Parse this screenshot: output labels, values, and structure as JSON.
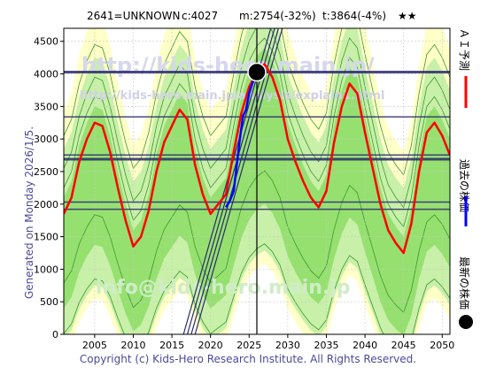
{
  "header": {
    "title": "2641=UNKNOWN",
    "current": "c:4027",
    "min": "m:2754(-32%)",
    "target": "t:3864(-4%)",
    "stars": "★★"
  },
  "side_text": "Generated on Monday 2026/1/5.",
  "footer": "Copyright (c) Kids-Hero Research Institute. All Rights Reserved.",
  "watermarks": {
    "url_main": "http://kids-hero.main.jp/",
    "url_sub": "http://kids-hero.main.jp/analysis/explain1.html",
    "email": "info@kids-hero.main.jp"
  },
  "legend": {
    "ai_forecast": "ＡＩ予測",
    "past_price": "過去の株価",
    "latest_price": "最新の株価"
  },
  "colors": {
    "plot_bg": "#ffffff",
    "pale_yellow": "#ffffc8",
    "light_green": "#c8f0a8",
    "green": "#96e070",
    "dark_green_line": "#3a9a2a",
    "forecast_red": "#ff0000",
    "past_blue": "#0000ff",
    "h_line": "#2a2a6e",
    "diag_line": "#2a2a6e"
  },
  "chart_data": {
    "type": "line",
    "xlim": [
      2001,
      2051
    ],
    "ylim": [
      0,
      4700
    ],
    "x_ticks": [
      2005,
      2010,
      2015,
      2020,
      2025,
      2030,
      2035,
      2040,
      2045,
      2050
    ],
    "y_ticks": [
      0,
      500,
      1000,
      1500,
      2000,
      2500,
      3000,
      3500,
      4000,
      4500
    ],
    "grid": true,
    "legend_position": "right",
    "latest_point": {
      "x": 2026.0,
      "y": 4027
    },
    "vertical_line_x": 2026.0,
    "horizontal_levels": [
      {
        "y": 4027,
        "bold": true
      },
      {
        "y": 3340,
        "bold": false
      },
      {
        "y": 2754,
        "bold": false
      },
      {
        "y": 2690,
        "bold": true
      },
      {
        "y": 2030,
        "bold": false
      },
      {
        "y": 1920,
        "bold": false
      }
    ],
    "forecast_red": [
      [
        2001.0,
        1850
      ],
      [
        2002.0,
        2100
      ],
      [
        2003.0,
        2650
      ],
      [
        2004.0,
        3000
      ],
      [
        2005.0,
        3250
      ],
      [
        2006.0,
        3200
      ],
      [
        2007.0,
        2800
      ],
      [
        2008.0,
        2250
      ],
      [
        2009.0,
        1750
      ],
      [
        2010.0,
        1350
      ],
      [
        2011.0,
        1500
      ],
      [
        2012.0,
        1900
      ],
      [
        2013.0,
        2500
      ],
      [
        2014.0,
        2950
      ],
      [
        2015.0,
        3200
      ],
      [
        2016.0,
        3450
      ],
      [
        2017.0,
        3300
      ],
      [
        2018.0,
        2600
      ],
      [
        2019.0,
        2150
      ],
      [
        2020.0,
        1850
      ],
      [
        2021.0,
        2000
      ],
      [
        2022.0,
        2150
      ],
      [
        2023.0,
        2800
      ],
      [
        2024.0,
        3400
      ],
      [
        2025.0,
        3800
      ],
      [
        2026.0,
        4027
      ],
      [
        2027.0,
        4150
      ],
      [
        2028.0,
        3950
      ],
      [
        2029.0,
        3600
      ],
      [
        2030.0,
        3000
      ],
      [
        2031.0,
        2650
      ],
      [
        2032.0,
        2350
      ],
      [
        2033.0,
        2100
      ],
      [
        2034.0,
        1950
      ],
      [
        2035.0,
        2200
      ],
      [
        2036.0,
        2950
      ],
      [
        2037.0,
        3500
      ],
      [
        2038.0,
        3850
      ],
      [
        2039.0,
        3700
      ],
      [
        2040.0,
        3100
      ],
      [
        2041.0,
        2550
      ],
      [
        2042.0,
        2000
      ],
      [
        2043.0,
        1600
      ],
      [
        2044.0,
        1400
      ],
      [
        2045.0,
        1250
      ],
      [
        2046.0,
        1700
      ],
      [
        2047.0,
        2500
      ],
      [
        2048.0,
        3100
      ],
      [
        2049.0,
        3250
      ],
      [
        2050.0,
        3050
      ],
      [
        2051.0,
        2750
      ]
    ],
    "past_blue": [
      [
        2022.0,
        1950
      ],
      [
        2022.5,
        2050
      ],
      [
        2023.0,
        2200
      ],
      [
        2023.4,
        2600
      ],
      [
        2023.8,
        3000
      ],
      [
        2024.2,
        3350
      ],
      [
        2024.6,
        3450
      ],
      [
        2025.0,
        3700
      ],
      [
        2025.4,
        3850
      ],
      [
        2025.8,
        3950
      ],
      [
        2026.0,
        4027
      ]
    ],
    "diagonal_lines": [
      {
        "x1": 2016.5,
        "y1": 0,
        "x2": 2029.0,
        "y2": 5200
      },
      {
        "x1": 2017.0,
        "y1": 0,
        "x2": 2029.5,
        "y2": 5200
      },
      {
        "x1": 2017.5,
        "y1": 0,
        "x2": 2030.0,
        "y2": 5200
      },
      {
        "x1": 2018.0,
        "y1": 0,
        "x2": 2030.5,
        "y2": 5200
      }
    ]
  }
}
